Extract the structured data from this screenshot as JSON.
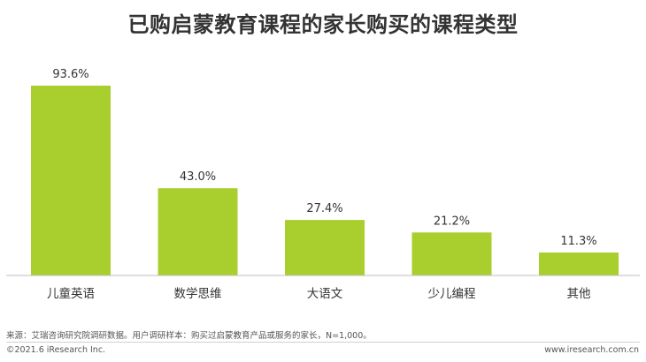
{
  "chart_data": {
    "type": "bar",
    "title": "已购启蒙教育课程的家长购买的课程类型",
    "categories": [
      "儿童英语",
      "数学思维",
      "大语文",
      "少儿编程",
      "其他"
    ],
    "values": [
      93.6,
      43.0,
      27.4,
      21.2,
      11.3
    ],
    "value_labels": [
      "93.6%",
      "43.0%",
      "27.4%",
      "21.2%",
      "11.3%"
    ],
    "ylim": [
      0,
      100
    ],
    "grid": false,
    "legend": "none",
    "bar_color": "#a8cf2e"
  },
  "footer": {
    "source": "来源：艾瑞咨询研究院调研数据。用户调研样本：购买过启蒙教育产品或服务的家长，N=1,000。",
    "copyright": "©2021.6 iResearch Inc.",
    "website": "www.iresearch.com.cn"
  }
}
